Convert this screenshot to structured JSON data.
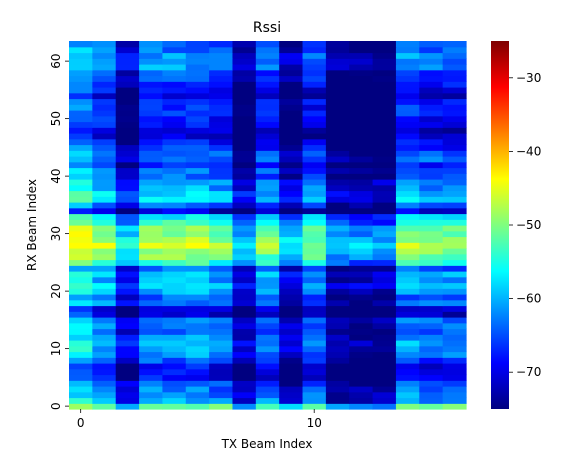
{
  "chart_data": {
    "type": "heatmap",
    "title": "Rssi",
    "xlabel": "TX Beam Index",
    "ylabel": "RX Beam Index",
    "x_ticks": [
      0,
      10
    ],
    "y_ticks": [
      0,
      10,
      20,
      30,
      40,
      50,
      60
    ],
    "x_range": [
      0,
      16
    ],
    "y_range": [
      0,
      63
    ],
    "rows": 64,
    "cols": 17,
    "colorbar": {
      "colormap": "jet",
      "vmin": -75,
      "vmax": -25,
      "ticks": [
        -30,
        -40,
        -50,
        -60,
        -70
      ],
      "tick_labels": [
        "−30",
        "−40",
        "−50",
        "−60",
        "−70"
      ]
    },
    "col_profile": [
      -56,
      -60,
      -68,
      -60,
      -60,
      -60,
      -62,
      -70,
      -62,
      -70,
      -63,
      -72,
      -72,
      -72,
      -60,
      -62,
      -62
    ],
    "row_profile": [
      -52,
      -62,
      -63,
      -64,
      -65,
      -70,
      -71,
      -70,
      -66,
      -63,
      -62,
      -62,
      -63,
      -65,
      -64,
      -64,
      -72,
      -72,
      -64,
      -66,
      -62,
      -60,
      -62,
      -60,
      -65,
      -55,
      -52,
      -50,
      -48,
      -50,
      -52,
      -52,
      -56,
      -58,
      -72,
      -65,
      -60,
      -60,
      -62,
      -62,
      -65,
      -65,
      -68,
      -64,
      -65,
      -68,
      -69,
      -72,
      -72,
      -70,
      -69,
      -68,
      -68,
      -68,
      -72,
      -70,
      -68,
      -66,
      -66,
      -63,
      -63,
      -63,
      -65,
      -66
    ],
    "values_note": ""
  }
}
